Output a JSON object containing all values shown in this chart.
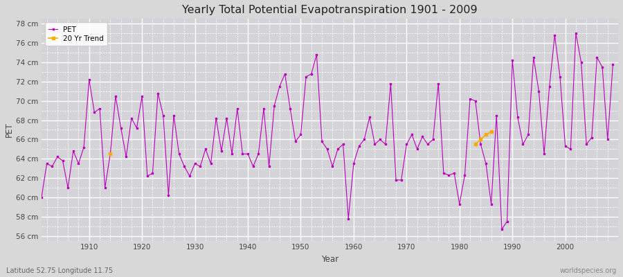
{
  "title": "Yearly Total Potential Evapotranspiration 1901 - 2009",
  "xlabel": "Year",
  "ylabel": "PET",
  "bottom_left_label": "Latitude 52.75 Longitude 11.75",
  "bottom_right_label": "worldspecies.org",
  "ylim": [
    55.5,
    78.5
  ],
  "xlim": [
    1901,
    2010
  ],
  "fig_bg_color": "#d8d8d8",
  "plot_bg_color": "#d4d4d8",
  "line_color": "#bb00bb",
  "trend_color": "#ffaa00",
  "pet_data": {
    "1901": 60.0,
    "1902": 63.5,
    "1903": 63.2,
    "1904": 64.2,
    "1905": 63.8,
    "1906": 61.0,
    "1907": 64.8,
    "1908": 63.5,
    "1909": 65.2,
    "1910": 72.2,
    "1911": 68.8,
    "1912": 69.2,
    "1913": 61.0,
    "1914": 64.5,
    "1915": 70.5,
    "1916": 67.2,
    "1917": 64.2,
    "1918": 68.2,
    "1919": 67.2,
    "1920": 70.5,
    "1921": 62.2,
    "1922": 62.5,
    "1923": 70.8,
    "1924": 68.5,
    "1925": 60.2,
    "1926": 68.5,
    "1927": 64.5,
    "1928": 63.2,
    "1929": 62.2,
    "1930": 63.5,
    "1931": 63.2,
    "1932": 65.0,
    "1933": 63.5,
    "1934": 68.2,
    "1935": 64.8,
    "1936": 68.2,
    "1937": 64.5,
    "1938": 69.2,
    "1939": 64.5,
    "1940": 64.5,
    "1941": 63.2,
    "1942": 64.5,
    "1943": 69.2,
    "1944": 63.2,
    "1945": 69.5,
    "1946": 71.5,
    "1947": 72.8,
    "1948": 69.2,
    "1949": 65.8,
    "1950": 66.5,
    "1951": 72.5,
    "1952": 72.8,
    "1953": 74.8,
    "1954": 65.8,
    "1955": 65.0,
    "1956": 63.2,
    "1957": 65.0,
    "1958": 65.5,
    "1959": 57.8,
    "1960": 63.5,
    "1961": 65.3,
    "1962": 66.0,
    "1963": 68.3,
    "1964": 65.5,
    "1965": 66.0,
    "1966": 65.5,
    "1967": 71.8,
    "1968": 61.8,
    "1969": 61.8,
    "1970": 65.5,
    "1971": 66.5,
    "1972": 65.0,
    "1973": 66.3,
    "1974": 65.5,
    "1975": 66.0,
    "1976": 71.8,
    "1977": 62.5,
    "1978": 62.3,
    "1979": 62.5,
    "1980": 59.3,
    "1981": 62.3,
    "1982": 70.2,
    "1983": 70.0,
    "1984": 65.5,
    "1985": 63.5,
    "1986": 59.3,
    "1987": 68.5,
    "1988": 56.7,
    "1989": 57.5,
    "1990": 74.2,
    "1991": 68.3,
    "1992": 65.5,
    "1993": 66.5,
    "1994": 74.5,
    "1995": 71.0,
    "1996": 64.5,
    "1997": 71.5,
    "1998": 76.8,
    "1999": 72.5,
    "2000": 65.3,
    "2001": 65.0,
    "2002": 77.0,
    "2003": 74.0,
    "2004": 65.5,
    "2005": 66.2,
    "2006": 74.5,
    "2007": 73.5,
    "2008": 66.0,
    "2009": 73.8
  },
  "trend_data": {
    "1914": 64.5,
    "1983": 65.5,
    "1984": 66.0,
    "1985": 66.5,
    "1986": 66.8
  },
  "yticks": [
    56,
    58,
    60,
    62,
    64,
    66,
    68,
    70,
    72,
    74,
    76,
    78
  ],
  "xticks": [
    1910,
    1920,
    1930,
    1940,
    1950,
    1960,
    1970,
    1980,
    1990,
    2000
  ]
}
